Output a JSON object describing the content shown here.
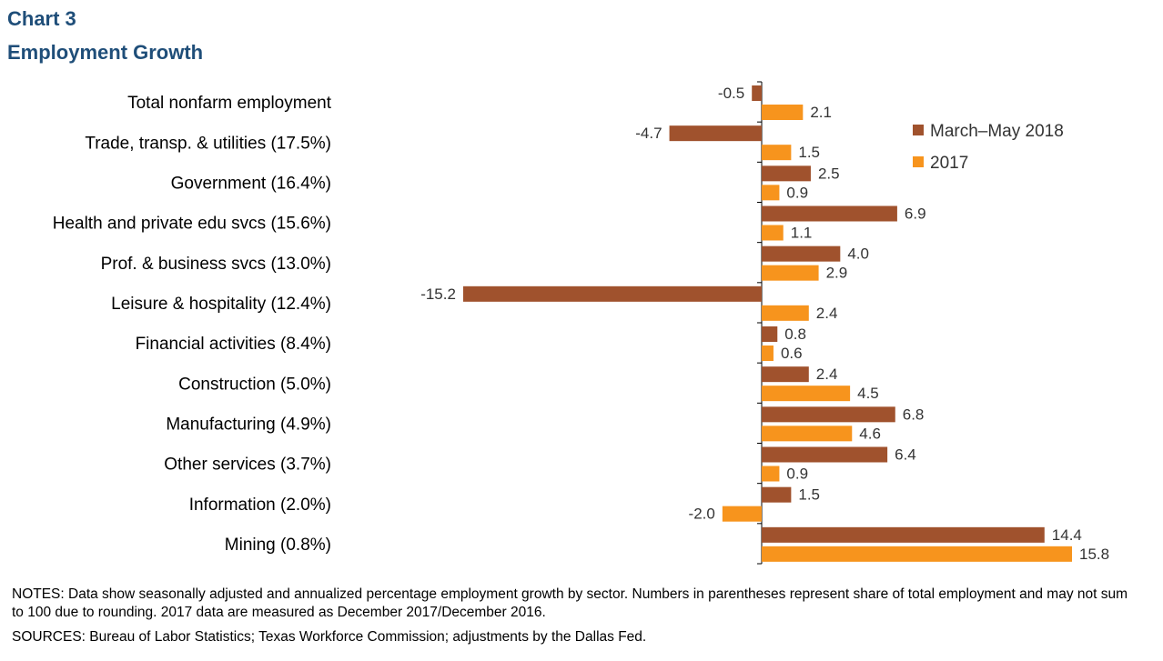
{
  "header": {
    "chart_label": "Chart 3",
    "title": "Employment  Growth"
  },
  "chart_data": {
    "type": "bar",
    "orientation": "horizontal",
    "categories": [
      "Total nonfarm employment",
      "Trade, transp. & utilities (17.5%)",
      "Government (16.4%)",
      "Health and private edu svcs (15.6%)",
      "Prof. & business svcs (13.0%)",
      "Leisure & hospitality (12.4%)",
      "Financial activities (8.4%)",
      "Construction (5.0%)",
      "Manufacturing (4.9%)",
      "Other services (3.7%)",
      "Information (2.0%)",
      "Mining (0.8%)"
    ],
    "series": [
      {
        "name": "March–May 2018",
        "color": "#a0522d",
        "values": [
          -0.5,
          -4.7,
          2.5,
          6.9,
          4.0,
          -15.2,
          0.8,
          2.4,
          6.8,
          6.4,
          1.5,
          14.4
        ],
        "labels": [
          "-0.5",
          "-4.7",
          "2.5",
          "6.9",
          "4.0",
          "-15.2",
          "0.8",
          "2.4",
          "6.8",
          "6.4",
          "1.5",
          "14.4"
        ]
      },
      {
        "name": "2017",
        "color": "#f7941d",
        "values": [
          2.1,
          1.5,
          0.9,
          1.1,
          2.9,
          2.4,
          0.6,
          4.5,
          4.6,
          0.9,
          -2.0,
          15.8
        ],
        "labels": [
          "2.1",
          "1.5",
          "0.9",
          "1.1",
          "2.9",
          "2.4",
          "0.6",
          "4.5",
          "4.6",
          "0.9",
          "-2.0",
          "15.8"
        ]
      }
    ],
    "xlim": [
      -15.2,
      15.8
    ],
    "grid": false,
    "legend_position": "top-right"
  },
  "footer": {
    "notes": "NOTES: Data show seasonally adjusted and annualized percentage employment growth by sector. Numbers in parentheses represent share of total employment and may not sum to 100 due to rounding. 2017 data are measured as December 2017/December 2016.",
    "sources": "SOURCES: Bureau of Labor Statistics; Texas Workforce Commission; adjustments by the Dallas Fed."
  }
}
